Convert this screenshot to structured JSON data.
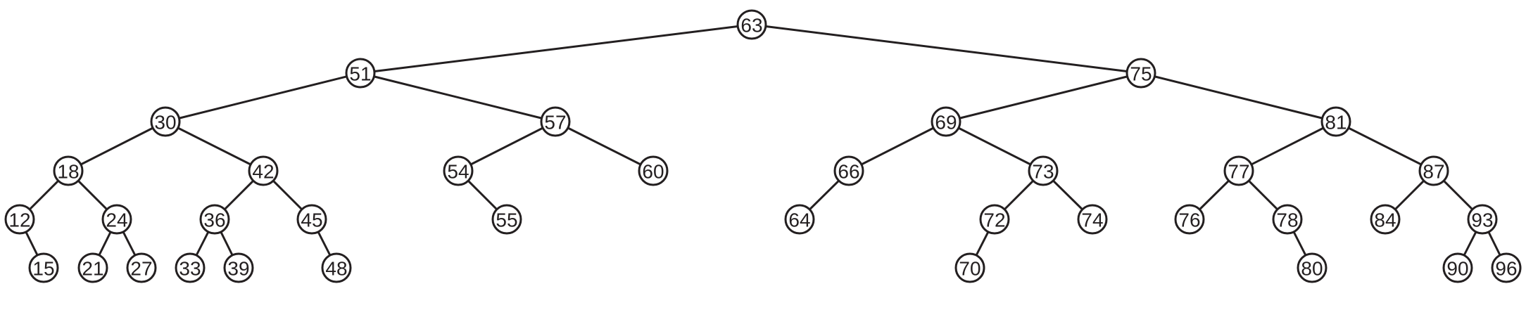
{
  "tree": {
    "root": "63",
    "nodes": [
      {
        "key": "63",
        "parent": null
      },
      {
        "key": "51",
        "parent": "63"
      },
      {
        "key": "75",
        "parent": "63"
      },
      {
        "key": "30",
        "parent": "51"
      },
      {
        "key": "57",
        "parent": "51"
      },
      {
        "key": "69",
        "parent": "75"
      },
      {
        "key": "81",
        "parent": "75"
      },
      {
        "key": "18",
        "parent": "30"
      },
      {
        "key": "42",
        "parent": "30"
      },
      {
        "key": "54",
        "parent": "57"
      },
      {
        "key": "60",
        "parent": "57"
      },
      {
        "key": "66",
        "parent": "69"
      },
      {
        "key": "73",
        "parent": "69"
      },
      {
        "key": "77",
        "parent": "81"
      },
      {
        "key": "87",
        "parent": "81"
      },
      {
        "key": "12",
        "parent": "18"
      },
      {
        "key": "24",
        "parent": "18"
      },
      {
        "key": "36",
        "parent": "42"
      },
      {
        "key": "45",
        "parent": "42"
      },
      {
        "key": "55",
        "parent": "54"
      },
      {
        "key": "64",
        "parent": "66"
      },
      {
        "key": "72",
        "parent": "73"
      },
      {
        "key": "74",
        "parent": "73"
      },
      {
        "key": "76",
        "parent": "77"
      },
      {
        "key": "78",
        "parent": "77"
      },
      {
        "key": "84",
        "parent": "87"
      },
      {
        "key": "93",
        "parent": "87"
      },
      {
        "key": "15",
        "parent": "12"
      },
      {
        "key": "21",
        "parent": "24"
      },
      {
        "key": "27",
        "parent": "24"
      },
      {
        "key": "33",
        "parent": "36"
      },
      {
        "key": "39",
        "parent": "36"
      },
      {
        "key": "48",
        "parent": "45"
      },
      {
        "key": "70",
        "parent": "72"
      },
      {
        "key": "80",
        "parent": "78"
      },
      {
        "key": "90",
        "parent": "93"
      },
      {
        "key": "96",
        "parent": "93"
      }
    ]
  }
}
